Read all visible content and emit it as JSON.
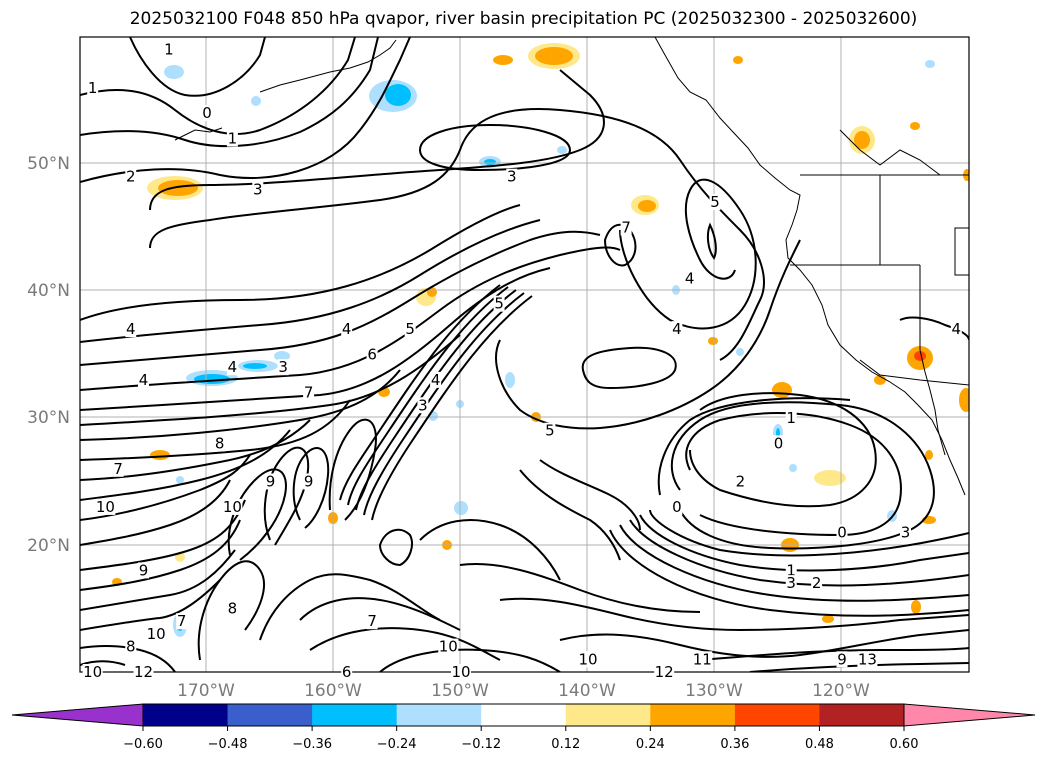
{
  "title": "2025032100 F048 850 hPa qvapor, river basin precipitation PC (2025032300 - 2025032600)",
  "map": {
    "lat_ticks": [
      "50°N",
      "40°N",
      "30°N",
      "20°N"
    ],
    "lon_ticks": [
      "170°W",
      "160°W",
      "150°W",
      "140°W",
      "130°W",
      "120°W"
    ],
    "lon_range": [
      -177,
      -107
    ],
    "lat_range": [
      10,
      60
    ],
    "contour_labels": [
      {
        "text": "1",
        "lon": -170,
        "lat": 59
      },
      {
        "text": "1",
        "lon": -176,
        "lat": 56
      },
      {
        "text": "0",
        "lon": -167,
        "lat": 54
      },
      {
        "text": "1",
        "lon": -165,
        "lat": 52
      },
      {
        "text": "2",
        "lon": -173,
        "lat": 49
      },
      {
        "text": "3",
        "lon": -163,
        "lat": 48
      },
      {
        "text": "3",
        "lon": -143,
        "lat": 49
      },
      {
        "text": "7",
        "lon": -134,
        "lat": 45
      },
      {
        "text": "5",
        "lon": -127,
        "lat": 47
      },
      {
        "text": "4",
        "lon": -129,
        "lat": 41
      },
      {
        "text": "4",
        "lon": -173,
        "lat": 37
      },
      {
        "text": "4",
        "lon": -156,
        "lat": 37
      },
      {
        "text": "6",
        "lon": -154,
        "lat": 35
      },
      {
        "text": "5",
        "lon": -151,
        "lat": 37
      },
      {
        "text": "5",
        "lon": -144,
        "lat": 39
      },
      {
        "text": "4",
        "lon": -130,
        "lat": 37
      },
      {
        "text": "4",
        "lon": -108,
        "lat": 37
      },
      {
        "text": "4",
        "lon": -172,
        "lat": 33
      },
      {
        "text": "4",
        "lon": -165,
        "lat": 34
      },
      {
        "text": "3",
        "lon": -161,
        "lat": 34
      },
      {
        "text": "7",
        "lon": -159,
        "lat": 32
      },
      {
        "text": "4",
        "lon": -149,
        "lat": 33
      },
      {
        "text": "3",
        "lon": -150,
        "lat": 31
      },
      {
        "text": "5",
        "lon": -140,
        "lat": 29
      },
      {
        "text": "1",
        "lon": -121,
        "lat": 30
      },
      {
        "text": "0",
        "lon": -122,
        "lat": 28
      },
      {
        "text": "8",
        "lon": -166,
        "lat": 28
      },
      {
        "text": "7",
        "lon": -174,
        "lat": 26
      },
      {
        "text": "9",
        "lon": -162,
        "lat": 25
      },
      {
        "text": "9",
        "lon": -159,
        "lat": 25
      },
      {
        "text": "2",
        "lon": -125,
        "lat": 25
      },
      {
        "text": "10",
        "lon": -175,
        "lat": 23
      },
      {
        "text": "10",
        "lon": -165,
        "lat": 23
      },
      {
        "text": "0",
        "lon": -130,
        "lat": 23
      },
      {
        "text": "0",
        "lon": -117,
        "lat": 21
      },
      {
        "text": "3",
        "lon": -112,
        "lat": 21
      },
      {
        "text": "9",
        "lon": -172,
        "lat": 18
      },
      {
        "text": "1",
        "lon": -121,
        "lat": 18
      },
      {
        "text": "2",
        "lon": -119,
        "lat": 17
      },
      {
        "text": "3",
        "lon": -121,
        "lat": 17
      },
      {
        "text": "8",
        "lon": -165,
        "lat": 15
      },
      {
        "text": "7",
        "lon": -169,
        "lat": 14
      },
      {
        "text": "10",
        "lon": -171,
        "lat": 13
      },
      {
        "text": "8",
        "lon": -173,
        "lat": 12
      },
      {
        "text": "7",
        "lon": -154,
        "lat": 14
      },
      {
        "text": "10",
        "lon": -148,
        "lat": 12
      },
      {
        "text": "9",
        "lon": -117,
        "lat": 11
      },
      {
        "text": "10",
        "lon": -137,
        "lat": 11
      },
      {
        "text": "12",
        "lon": -172,
        "lat": 10
      },
      {
        "text": "10",
        "lon": -147,
        "lat": 10
      },
      {
        "text": "12",
        "lon": -131,
        "lat": 10
      },
      {
        "text": "11",
        "lon": -128,
        "lat": 11
      },
      {
        "text": "13",
        "lon": -115,
        "lat": 11
      },
      {
        "text": "6",
        "lon": -156,
        "lat": 10
      },
      {
        "text": "10",
        "lon": -176,
        "lat": 10
      }
    ]
  },
  "colorbar": {
    "ticks": [
      "-0.60",
      "-0.48",
      "-0.36",
      "-0.24",
      "-0.12",
      "0.12",
      "0.24",
      "0.36",
      "0.48",
      "0.60"
    ],
    "colors": [
      "#9932cc",
      "#00008b",
      "#3a5fcd",
      "#00bfff",
      "#aedfff",
      "#ffffff",
      "#ffe88a",
      "#ffa500",
      "#ff4500",
      "#b22222",
      "#ff88aa"
    ]
  }
}
